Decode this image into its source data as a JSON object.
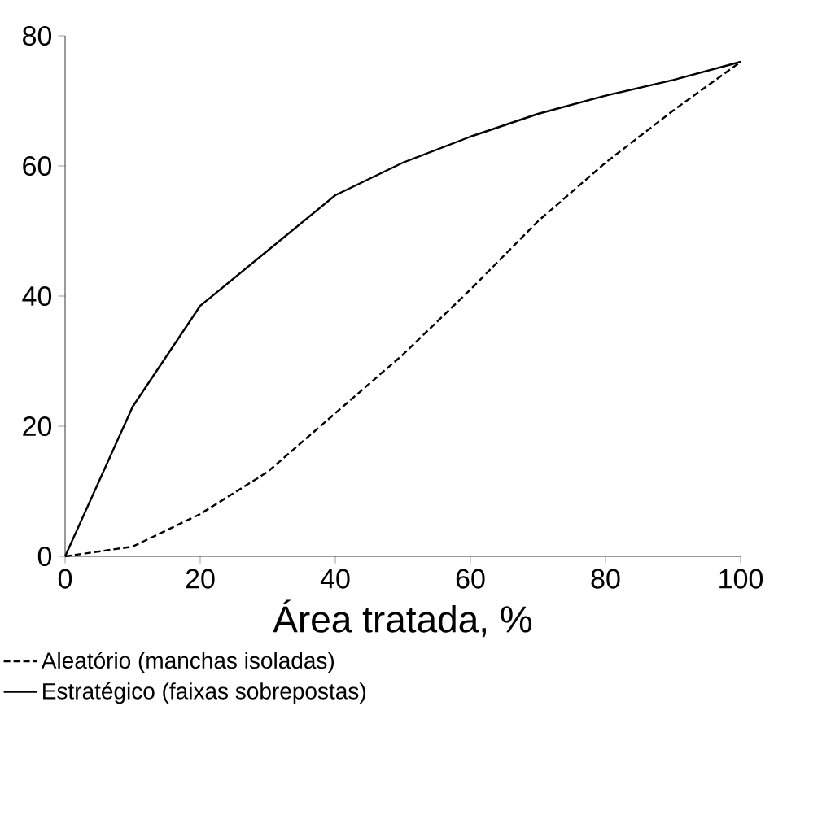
{
  "chart_data": {
    "type": "line",
    "xlabel": "Área tratada, %",
    "x": [
      0,
      10,
      20,
      30,
      40,
      50,
      60,
      70,
      80,
      90,
      100
    ],
    "series": [
      {
        "name": "Aleatório (manchas isoladas)",
        "color": "#000000",
        "line_style": "dashed",
        "values": [
          0,
          1.5,
          6.5,
          13,
          22,
          31,
          41,
          51.5,
          60.5,
          68.5,
          76
        ]
      },
      {
        "name": "Estratégico (faixas sobrepostas)",
        "color": "#000000",
        "line_style": "solid",
        "values": [
          0,
          23,
          38.5,
          47,
          55.5,
          60.5,
          64.5,
          68,
          70.8,
          73.2,
          76
        ]
      }
    ],
    "xlim": [
      0,
      100
    ],
    "ylim": [
      0,
      80
    ],
    "xticks": [
      0,
      20,
      40,
      60,
      80,
      100
    ],
    "yticks": [
      0,
      20,
      40,
      60,
      80
    ],
    "grid": false,
    "legend": "bottom",
    "marker": "none"
  }
}
